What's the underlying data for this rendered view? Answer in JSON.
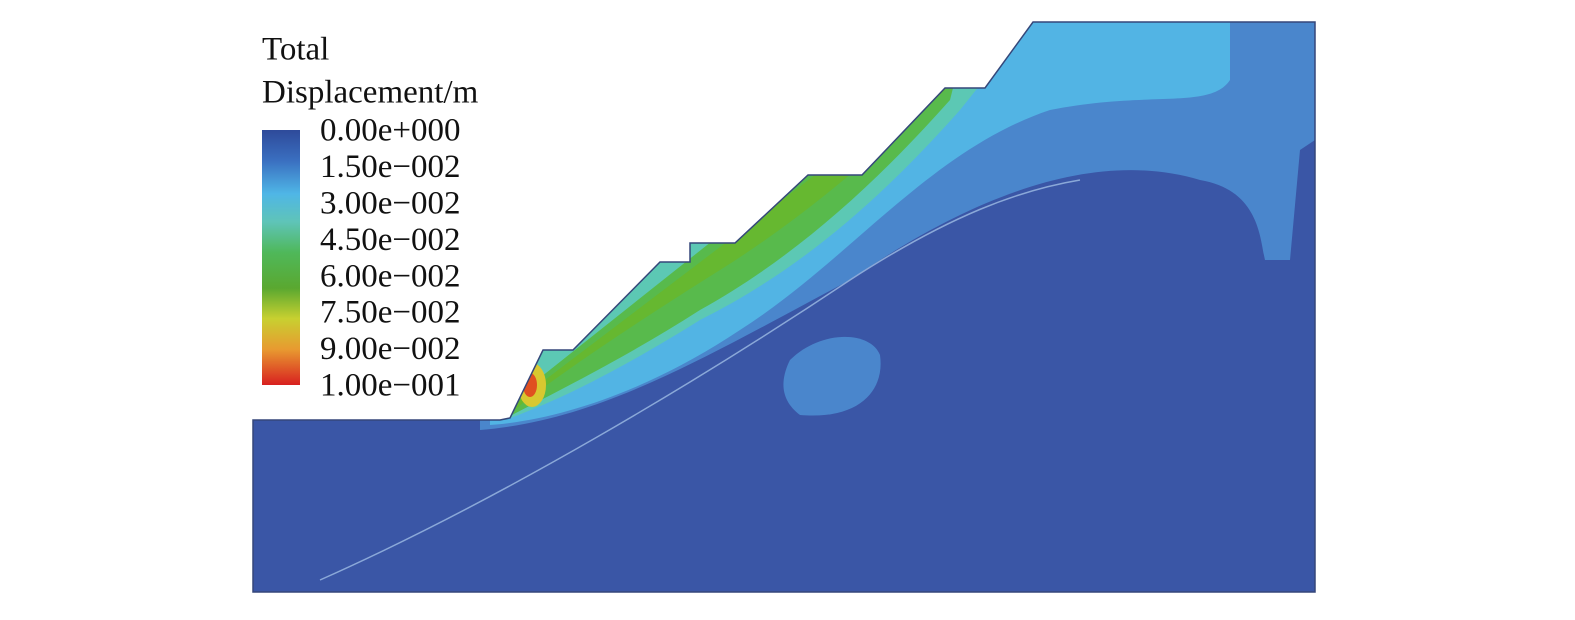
{
  "legend": {
    "title": [
      "Total",
      "Displacement/m"
    ],
    "labels": [
      "0.00e+000",
      "1.50e−002",
      "3.00e−002",
      "4.50e−002",
      "6.00e−002",
      "7.50e−002",
      "9.00e−002",
      "1.00e−001"
    ]
  }
}
